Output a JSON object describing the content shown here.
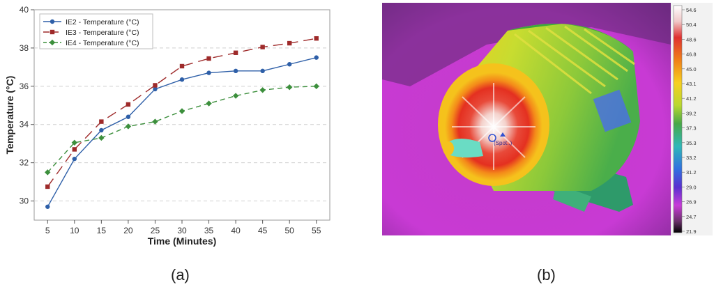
{
  "captions": {
    "a": "(a)",
    "b": "(b)"
  },
  "chart_data": {
    "type": "line",
    "title": "",
    "xlabel": "Time (Minutes)",
    "ylabel": "Temperature (°C)",
    "x": [
      5,
      10,
      15,
      20,
      25,
      30,
      35,
      40,
      45,
      50,
      55
    ],
    "xlim": [
      2.5,
      57.5
    ],
    "ylim": [
      29,
      40
    ],
    "yticks": [
      30,
      32,
      34,
      36,
      38,
      40
    ],
    "grid": "horizontal-dashed",
    "legend_position": "top-left",
    "series": [
      {
        "name": "IE2 - Temperature (°C)",
        "color": "#2E5FA8",
        "marker": "circle",
        "dash": "solid",
        "values": [
          29.7,
          32.2,
          33.7,
          34.4,
          35.85,
          36.35,
          36.7,
          36.8,
          36.8,
          37.15,
          37.5
        ]
      },
      {
        "name": "IE3 - Temperature (°C)",
        "color": "#9E2A2A",
        "marker": "square",
        "dash": "long-dash",
        "values": [
          30.75,
          32.7,
          34.15,
          35.05,
          36.05,
          37.05,
          37.45,
          37.75,
          38.05,
          38.25,
          38.5
        ]
      },
      {
        "name": "IE4 - Temperature (°C)",
        "color": "#3C8F3C",
        "marker": "diamond",
        "dash": "short-dash",
        "values": [
          31.5,
          33.05,
          33.3,
          33.9,
          34.15,
          34.7,
          35.1,
          35.5,
          35.8,
          35.95,
          36.0
        ]
      }
    ]
  },
  "thermal": {
    "scale_labels": [
      "54.6",
      "50.4",
      "48.6",
      "46.8",
      "45.0",
      "43.1",
      "41.2",
      "39.2",
      "37.3",
      "35.3",
      "33.2",
      "31.2",
      "29.0",
      "26.9",
      "24.7",
      "21.9"
    ],
    "scale_colors": [
      "#ffffff",
      "#f2d6d6",
      "#e0564a",
      "#e02020",
      "#f07a18",
      "#f7c21a",
      "#d8e030",
      "#6db83c",
      "#2f9a58",
      "#30b8b0",
      "#4f9ae0",
      "#2540c8",
      "#7a2fd0",
      "#c63cd8",
      "#7a3a7a",
      "#1a0d1a"
    ],
    "crosshair_label": "(Spot..)"
  }
}
